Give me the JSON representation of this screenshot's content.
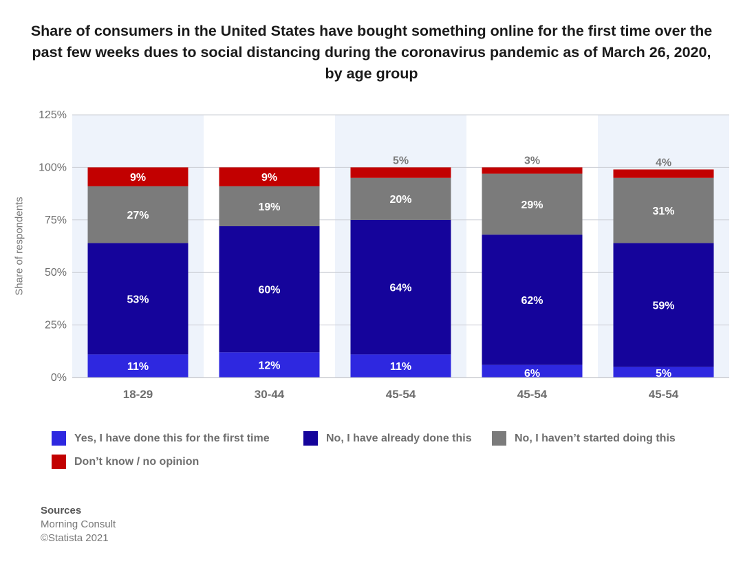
{
  "title": "Share of consumers in the United States have bought something online for the first time over the past few weeks dues to social distancing during the coronavirus pandemic as of March 26, 2020, by age group",
  "colors": {
    "series1": "#2e28e0",
    "series2": "#15049b",
    "series3": "#7b7b7b",
    "series4": "#c20000",
    "band": "#eef3fb"
  },
  "chart_data": {
    "type": "bar",
    "stacked": true,
    "categories": [
      "18-29",
      "30-44",
      "45-54",
      "45-54",
      "45-54"
    ],
    "series": [
      {
        "name": "Yes, I have done this for the first time",
        "values": [
          11,
          12,
          11,
          6,
          5
        ],
        "labels": [
          "11%",
          "12%",
          "11%",
          "6%",
          "5%"
        ]
      },
      {
        "name": "No, I have already done this",
        "values": [
          53,
          60,
          64,
          62,
          59
        ],
        "labels": [
          "53%",
          "60%",
          "64%",
          "62%",
          "59%"
        ]
      },
      {
        "name": "No, I haven't started doing this",
        "values": [
          27,
          19,
          20,
          29,
          31
        ],
        "labels": [
          "27%",
          "19%",
          "20%",
          "29%",
          "31%"
        ]
      },
      {
        "name": "Don't know / no opinion",
        "values": [
          9,
          9,
          5,
          3,
          4
        ],
        "labels": [
          "9%",
          "9%",
          "5%",
          "3%",
          "4%"
        ]
      }
    ],
    "ylabel": "Share of respondents",
    "ylim": [
      0,
      125
    ],
    "yticks": [
      "0%",
      "25%",
      "50%",
      "75%",
      "100%",
      "125%"
    ],
    "ytick_values": [
      0,
      25,
      50,
      75,
      100,
      125
    ],
    "grid": true,
    "legend_position": "bottom"
  },
  "legend": {
    "items": [
      "Yes, I have done this for the first time",
      "No, I have already done this",
      "No, I haven’t started doing this",
      "Don’t know / no opinion"
    ]
  },
  "sources": {
    "heading": "Sources",
    "line1": "Morning Consult",
    "line2": "©Statista 2021"
  }
}
